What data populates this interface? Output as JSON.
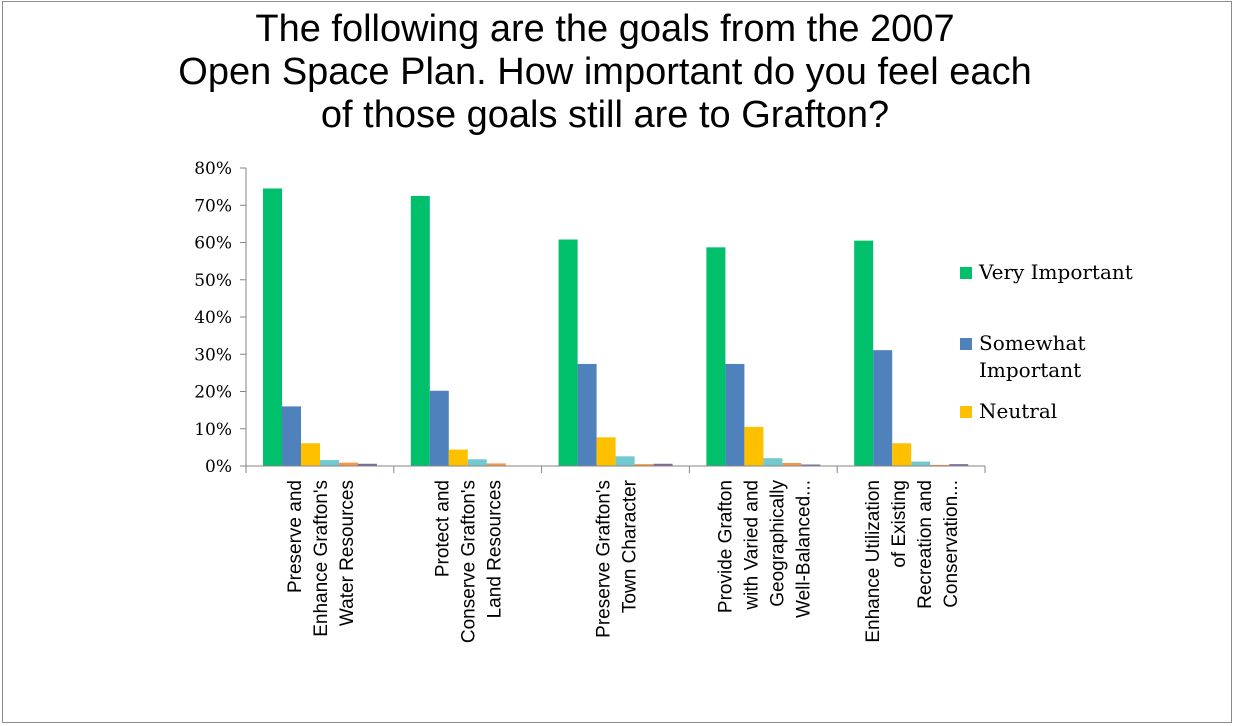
{
  "chart_data": {
    "type": "bar",
    "title_lines": [
      "The following are the goals from the 2007",
      "Open Space Plan. How important do you feel each",
      "of those goals still are to Grafton?"
    ],
    "categories": [
      [
        "Preserve and",
        "Enhance Grafton's",
        "Water Resources"
      ],
      [
        "Protect and",
        "Conserve Grafton's",
        "Land Resources"
      ],
      [
        "Preserve Grafton's",
        "Town Character"
      ],
      [
        "Provide Grafton",
        "with Varied and",
        "Geographically",
        "Well-Balanced..."
      ],
      [
        "Enhance Utilization",
        "of Existing",
        "Recreation and",
        "Conservation..."
      ]
    ],
    "y_ticks": [
      "0%",
      "10%",
      "20%",
      "30%",
      "40%",
      "50%",
      "60%",
      "70%",
      "80%"
    ],
    "ylim": [
      0,
      80
    ],
    "series": [
      {
        "name": "Very Important",
        "color": "#00c06c",
        "values": [
          74.5,
          72.5,
          60.8,
          58.7,
          60.5
        ]
      },
      {
        "name": "Somewhat Important",
        "color": "#4f81bd",
        "values": [
          16.0,
          20.2,
          27.4,
          27.4,
          31.1
        ]
      },
      {
        "name": "Neutral",
        "color": "#ffc000",
        "values": [
          6.1,
          4.4,
          7.7,
          10.5,
          6.1
        ]
      },
      {
        "color": "#72c9d0",
        "values": [
          1.6,
          1.8,
          2.6,
          2.1,
          1.2
        ]
      },
      {
        "color": "#f79646",
        "values": [
          0.9,
          0.7,
          0.5,
          0.8,
          0.3
        ]
      },
      {
        "color": "#7f6a9f",
        "values": [
          0.6,
          0.0,
          0.6,
          0.4,
          0.5
        ]
      }
    ],
    "legend_entries": [
      {
        "lines": [
          "Very Important"
        ],
        "color": "#00c06c"
      },
      {
        "lines": [
          "Somewhat",
          "Important"
        ],
        "color": "#4f81bd"
      },
      {
        "lines": [
          "Neutral"
        ],
        "color": "#ffc000"
      }
    ],
    "legend_position": "right",
    "grid": false
  }
}
